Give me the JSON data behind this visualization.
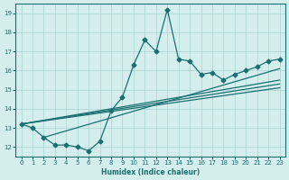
{
  "xlabel": "Humidex (Indice chaleur)",
  "xlim": [
    -0.5,
    23.5
  ],
  "ylim": [
    11.5,
    19.5
  ],
  "yticks": [
    12,
    13,
    14,
    15,
    16,
    17,
    18,
    19
  ],
  "xticks": [
    0,
    1,
    2,
    3,
    4,
    5,
    6,
    7,
    8,
    9,
    10,
    11,
    12,
    13,
    14,
    15,
    16,
    17,
    18,
    19,
    20,
    21,
    22,
    23
  ],
  "bg_color": "#d4eded",
  "grid_color": "#aad4d4",
  "line_color": "#1a7070",
  "main_line": [
    13.2,
    13.0,
    12.5,
    12.1,
    12.1,
    12.0,
    11.8,
    12.3,
    13.9,
    14.6,
    16.3,
    17.6,
    17.0,
    19.2,
    16.6,
    16.5,
    15.8,
    15.9,
    15.5,
    15.8,
    16.0,
    16.2,
    16.5,
    16.6
  ],
  "trend_lines": [
    [
      [
        0,
        23
      ],
      [
        13.2,
        15.5
      ]
    ],
    [
      [
        0,
        23
      ],
      [
        13.2,
        15.3
      ]
    ],
    [
      [
        0,
        23
      ],
      [
        13.2,
        15.1
      ]
    ],
    [
      [
        2,
        23
      ],
      [
        12.5,
        16.1
      ]
    ]
  ],
  "marker": "D",
  "markersize": 2.5,
  "linewidth": 0.9
}
